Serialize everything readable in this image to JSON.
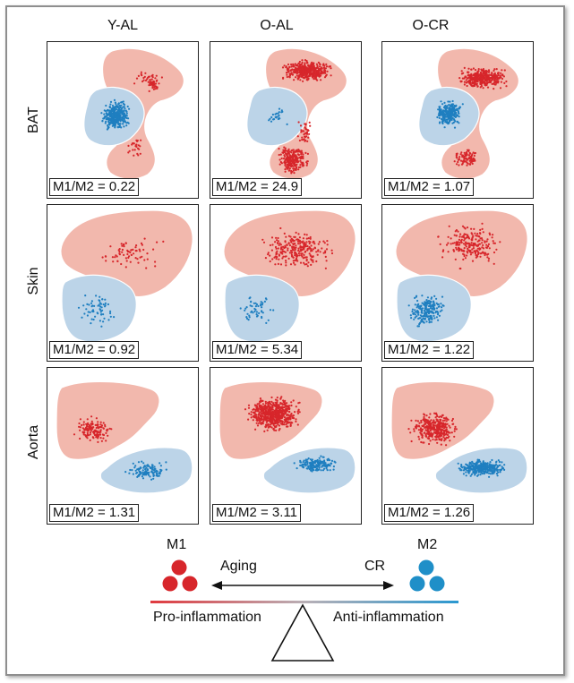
{
  "columns": [
    "Y-AL",
    "O-AL",
    "O-CR"
  ],
  "rows": [
    "BAT",
    "Skin",
    "Aorta"
  ],
  "ratios": [
    [
      "M1/M2 = 0.22",
      "M1/M2 = 24.9",
      "M1/M2 = 1.07"
    ],
    [
      "M1/M2 = 0.92",
      "M1/M2 = 5.34",
      "M1/M2 = 1.22"
    ],
    [
      "M1/M2 = 1.31",
      "M1/M2 = 3.11",
      "M1/M2 = 1.26"
    ]
  ],
  "legend": {
    "m1_label": "M1",
    "m2_label": "M2",
    "aging_label": "Aging",
    "cr_label": "CR",
    "pro_label": "Pro-inflammation",
    "anti_label": "Anti-inflammation"
  },
  "colors": {
    "m1_fill": "#f2b8ad",
    "m2_fill": "#bcd4e8",
    "m1_dot": "#d7262b",
    "m2_dot": "#1f7fc0",
    "frame": "#8e8e8e"
  }
}
